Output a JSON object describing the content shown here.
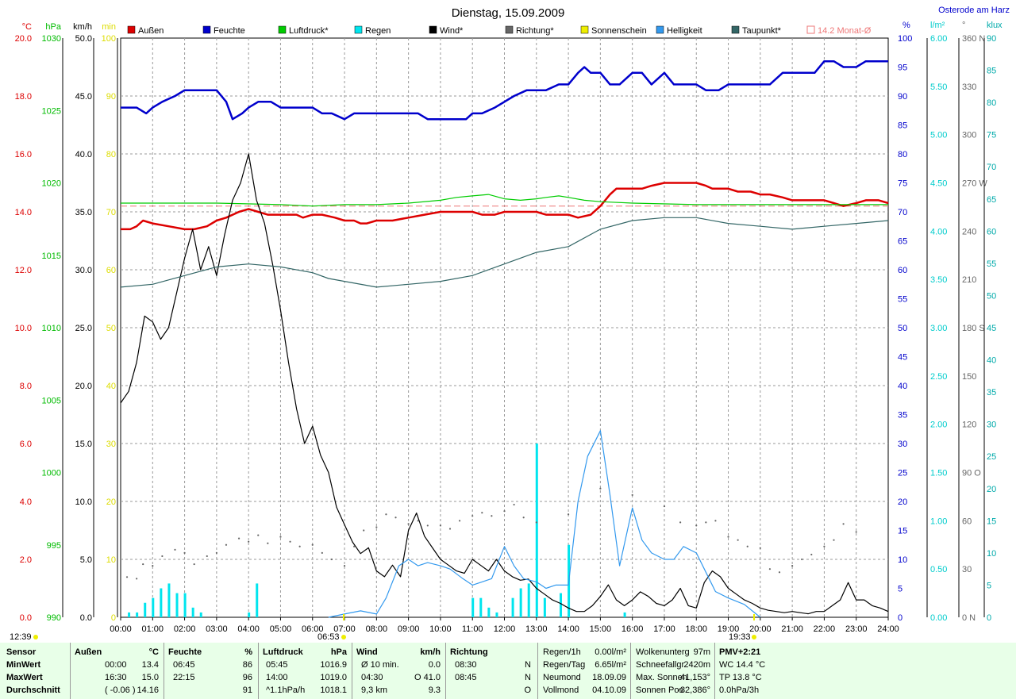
{
  "chart_data": {
    "type": "line",
    "title": "Dienstag, 15.09.2009",
    "location": "Osterode am Harz",
    "x_ticks": [
      "00:00",
      "01:00",
      "02:00",
      "03:00",
      "04:00",
      "05:00",
      "06:00",
      "07:00",
      "08:00",
      "09:00",
      "10:00",
      "11:00",
      "12:00",
      "13:00",
      "14:00",
      "15:00",
      "16:00",
      "17:00",
      "18:00",
      "19:00",
      "20:00",
      "21:00",
      "22:00",
      "23:00",
      "24:00"
    ],
    "left_axes": [
      {
        "unit": "°C",
        "color": "#dd0000",
        "min": 0,
        "max": 20,
        "labels": [
          "0.0",
          "2.0",
          "4.0",
          "6.0",
          "8.0",
          "10.0",
          "12.0",
          "14.0",
          "16.0",
          "18.0",
          "20.0"
        ]
      },
      {
        "unit": "hPa",
        "color": "#00bb00",
        "min": 990,
        "max": 1030,
        "labels": [
          "990",
          "995",
          "1000",
          "1005",
          "1010",
          "1015",
          "1020",
          "1025",
          "1030"
        ]
      },
      {
        "unit": "km/h",
        "color": "#000000",
        "min": 0,
        "max": 50,
        "labels": [
          "0.0",
          "5.0",
          "10.0",
          "15.0",
          "20.0",
          "25.0",
          "30.0",
          "35.0",
          "40.0",
          "45.0",
          "50.0"
        ]
      },
      {
        "unit": "min",
        "color": "#dddd00",
        "min": 0,
        "max": 100,
        "labels": [
          "0",
          "10",
          "20",
          "30",
          "40",
          "50",
          "60",
          "70",
          "80",
          "90",
          "100"
        ]
      }
    ],
    "right_axes": [
      {
        "unit": "%",
        "color": "#0000cc",
        "min": 0,
        "max": 100,
        "labels": [
          "0",
          "5",
          "10",
          "15",
          "20",
          "25",
          "30",
          "35",
          "40",
          "45",
          "50",
          "55",
          "60",
          "65",
          "70",
          "75",
          "80",
          "85",
          "90",
          "95",
          "100"
        ]
      },
      {
        "unit": "l/m²",
        "color": "#00cccc",
        "min": 0,
        "max": 6,
        "labels": [
          "0.00",
          "0.50",
          "1.00",
          "1.50",
          "2.00",
          "2.50",
          "3.00",
          "3.50",
          "4.00",
          "4.50",
          "5.00",
          "5.50",
          "6.00"
        ]
      },
      {
        "unit": "°",
        "color": "#666666",
        "min": 0,
        "max": 360,
        "labels": [
          "0 N",
          "30",
          "60",
          "90 O",
          "120",
          "150",
          "180 S",
          "210",
          "240",
          "270 W",
          "300",
          "330",
          "360 N"
        ]
      },
      {
        "unit": "klux",
        "color": "#00aaaa",
        "min": 0,
        "max": 90,
        "labels": [
          "0",
          "5",
          "10",
          "15",
          "20",
          "25",
          "30",
          "35",
          "40",
          "45",
          "50",
          "55",
          "60",
          "65",
          "70",
          "75",
          "80",
          "85",
          "90"
        ]
      }
    ],
    "legend": [
      "Außen",
      "Feuchte",
      "Luftdruck*",
      "Regen",
      "Wind*",
      "Richtung*",
      "Sonnenschein",
      "Helligkeit",
      "Taupunkt*",
      "14.2 Monat-Ø"
    ],
    "colors": {
      "aussen": "#dd0000",
      "feuchte": "#0000cc",
      "luftdruck": "#00cc00",
      "regen": "#00e5ee",
      "wind": "#000000",
      "richtung": "#666666",
      "sonne": "#eeee00",
      "helligkeit": "#3399ee",
      "taupunkt": "#336666",
      "monat": "#ee7777"
    },
    "monthly_avg": 14.2,
    "series": [
      {
        "name": "Außen",
        "unit": "°C",
        "x": [
          0,
          0.3,
          0.5,
          0.7,
          1,
          1.5,
          2,
          2.3,
          2.7,
          3,
          3.3,
          3.7,
          4,
          4.3,
          4.6,
          5,
          5.5,
          5.7,
          6,
          6.3,
          6.7,
          7,
          7.3,
          7.5,
          7.7,
          8,
          8.5,
          9,
          9.5,
          10,
          10.5,
          11,
          11.3,
          11.5,
          11.7,
          12,
          12.3,
          12.5,
          12.7,
          13,
          13.3,
          13.5,
          14,
          14.3,
          14.7,
          15,
          15.3,
          15.5,
          16,
          16.3,
          16.6,
          17,
          17.5,
          18,
          18.3,
          18.5,
          19,
          19.3,
          19.7,
          20,
          20.3,
          20.7,
          21,
          21.5,
          22,
          22.3,
          22.6,
          23,
          23.3,
          23.7,
          24
        ],
        "y": [
          13.4,
          13.4,
          13.5,
          13.7,
          13.6,
          13.5,
          13.4,
          13.4,
          13.5,
          13.7,
          13.8,
          14.0,
          14.1,
          14.0,
          13.9,
          13.9,
          13.9,
          13.8,
          13.9,
          13.9,
          13.8,
          13.7,
          13.7,
          13.6,
          13.6,
          13.7,
          13.7,
          13.8,
          13.9,
          14.0,
          14.0,
          14.0,
          13.9,
          13.9,
          13.9,
          14.0,
          14.0,
          14.0,
          14.0,
          14.0,
          13.9,
          13.9,
          13.9,
          13.8,
          13.9,
          14.2,
          14.6,
          14.8,
          14.8,
          14.8,
          14.9,
          15.0,
          15.0,
          15.0,
          14.9,
          14.8,
          14.8,
          14.7,
          14.7,
          14.6,
          14.6,
          14.5,
          14.4,
          14.4,
          14.4,
          14.3,
          14.2,
          14.3,
          14.4,
          14.4,
          14.3
        ]
      },
      {
        "name": "Feuchte",
        "unit": "%",
        "x": [
          0,
          0.5,
          0.8,
          1,
          1.3,
          1.7,
          2,
          2.5,
          3,
          3.3,
          3.5,
          3.8,
          4,
          4.3,
          4.7,
          5,
          5.5,
          6,
          6.3,
          6.6,
          7,
          7.3,
          7.7,
          8,
          8.5,
          9,
          9.3,
          9.6,
          10,
          10.5,
          10.8,
          11,
          11.3,
          11.7,
          12,
          12.3,
          12.7,
          13,
          13.3,
          13.7,
          14,
          14.3,
          14.5,
          14.7,
          15,
          15.3,
          15.6,
          16,
          16.3,
          16.6,
          17,
          17.3,
          17.6,
          18,
          18.3,
          18.7,
          19,
          19.3,
          19.7,
          20,
          20.3,
          20.7,
          21,
          21.3,
          21.7,
          22,
          22.3,
          22.6,
          23,
          23.3,
          23.7,
          24
        ],
        "y": [
          88,
          88,
          87,
          88,
          89,
          90,
          91,
          91,
          91,
          89,
          86,
          87,
          88,
          89,
          89,
          88,
          88,
          88,
          87,
          87,
          86,
          87,
          87,
          87,
          87,
          87,
          87,
          86,
          86,
          86,
          86,
          87,
          87,
          88,
          89,
          90,
          91,
          91,
          91,
          92,
          92,
          94,
          95,
          94,
          94,
          92,
          92,
          94,
          94,
          92,
          94,
          92,
          92,
          92,
          91,
          91,
          92,
          92,
          92,
          92,
          92,
          94,
          94,
          94,
          94,
          96,
          96,
          95,
          95,
          96,
          96,
          96
        ]
      },
      {
        "name": "Luftdruck*",
        "unit": "hPa",
        "x": [
          0,
          3,
          5,
          6,
          7,
          8,
          9,
          10,
          10.5,
          11,
          11.5,
          12,
          12.5,
          13,
          13.3,
          13.7,
          14,
          14.5,
          15,
          16,
          18,
          24
        ],
        "y": [
          1018.6,
          1018.6,
          1018.5,
          1018.4,
          1018.5,
          1018.5,
          1018.6,
          1018.8,
          1019.0,
          1019.1,
          1019.2,
          1018.9,
          1018.8,
          1018.9,
          1019.0,
          1019.1,
          1019.0,
          1018.8,
          1018.7,
          1018.6,
          1018.5,
          1018.5
        ]
      },
      {
        "name": "Wind*",
        "unit": "km/h",
        "x": [
          0,
          0.25,
          0.5,
          0.75,
          1,
          1.25,
          1.5,
          1.75,
          2,
          2.25,
          2.5,
          2.75,
          3,
          3.25,
          3.5,
          3.75,
          4,
          4.25,
          4.5,
          4.75,
          5,
          5.25,
          5.5,
          5.75,
          6,
          6.25,
          6.5,
          6.75,
          7,
          7.25,
          7.5,
          7.75,
          8,
          8.25,
          8.5,
          8.75,
          9,
          9.25,
          9.5,
          9.75,
          10,
          10.25,
          10.5,
          10.75,
          11,
          11.25,
          11.5,
          11.75,
          12,
          12.25,
          12.5,
          12.75,
          13,
          13.25,
          13.5,
          13.75,
          14,
          14.25,
          14.5,
          14.75,
          15,
          15.25,
          15.5,
          15.75,
          16,
          16.25,
          16.5,
          16.75,
          17,
          17.25,
          17.5,
          17.75,
          18,
          18.25,
          18.5,
          18.75,
          19,
          19.25,
          19.5,
          19.75,
          20,
          20.25,
          20.5,
          20.75,
          21,
          21.25,
          21.5,
          21.75,
          22,
          22.25,
          22.5,
          22.75,
          23,
          23.25,
          23.5,
          23.75,
          24
        ],
        "y": [
          18.5,
          19.5,
          22.0,
          26.0,
          25.5,
          24.0,
          25.0,
          28.0,
          31.0,
          33.5,
          30.0,
          32.0,
          29.5,
          33.0,
          36.0,
          37.5,
          40.0,
          36.0,
          34.0,
          30.5,
          26.5,
          22.0,
          18.0,
          15.0,
          16.5,
          14.0,
          12.5,
          9.5,
          8.0,
          6.5,
          5.5,
          6.0,
          4.0,
          3.5,
          4.5,
          3.5,
          7.5,
          9.0,
          7.0,
          6.0,
          5.0,
          4.5,
          4.0,
          3.8,
          5.0,
          4.5,
          4.0,
          5.0,
          4.0,
          3.5,
          3.2,
          3.3,
          2.5,
          2.0,
          1.5,
          1.2,
          0.8,
          0.5,
          0.5,
          1.0,
          1.8,
          2.8,
          1.5,
          1.0,
          1.5,
          2.2,
          1.8,
          1.2,
          1.0,
          1.5,
          2.5,
          1.0,
          0.8,
          3.0,
          4.0,
          3.5,
          2.5,
          2.0,
          1.5,
          1.2,
          0.8,
          0.6,
          0.5,
          0.4,
          0.5,
          0.4,
          0.3,
          0.5,
          0.5,
          1.0,
          1.5,
          3.0,
          1.5,
          1.5,
          1.0,
          0.8,
          0.5
        ]
      },
      {
        "name": "Taupunkt*",
        "unit": "°C",
        "x": [
          0,
          1,
          2,
          3,
          4,
          5,
          6,
          6.5,
          7,
          8,
          9,
          10,
          11,
          12,
          13,
          14,
          15,
          16,
          17,
          18,
          19,
          20,
          21,
          22,
          23,
          24
        ],
        "y": [
          11.4,
          11.5,
          11.8,
          12.1,
          12.2,
          12.1,
          11.9,
          11.7,
          11.6,
          11.4,
          11.5,
          11.6,
          11.8,
          12.2,
          12.6,
          12.8,
          13.4,
          13.7,
          13.8,
          13.8,
          13.6,
          13.5,
          13.4,
          13.5,
          13.6,
          13.7
        ]
      },
      {
        "name": "Helligkeit",
        "unit": "klux",
        "x": [
          6.5,
          7,
          7.5,
          8,
          8.3,
          8.7,
          9,
          9.3,
          9.6,
          10,
          10.3,
          10.7,
          11,
          11.3,
          11.6,
          12,
          12.3,
          12.6,
          13,
          13.3,
          13.6,
          14,
          14.3,
          14.6,
          15,
          15.3,
          15.6,
          16,
          16.3,
          16.6,
          17,
          17.3,
          17.6,
          18,
          18.3,
          18.6,
          19,
          19.5,
          20
        ],
        "y": [
          0,
          0.5,
          1,
          0.5,
          3,
          8,
          9,
          8,
          8.5,
          8,
          7.5,
          6,
          5,
          5.5,
          6,
          11,
          8,
          6,
          5.5,
          4.5,
          5,
          5,
          18,
          25,
          29,
          19,
          8,
          17,
          12,
          10,
          9,
          9,
          11,
          10,
          7,
          4,
          3,
          2,
          0
        ]
      },
      {
        "name": "Richtung*",
        "unit": "°",
        "x": [
          0.2,
          0.5,
          0.7,
          1,
          1.3,
          1.7,
          2,
          2.3,
          2.7,
          3,
          3.3,
          3.7,
          4,
          4.3,
          4.6,
          5,
          5.3,
          5.6,
          6,
          6.3,
          6.6,
          7,
          7.3,
          7.6,
          8,
          8.3,
          8.6,
          9,
          9.3,
          9.6,
          10,
          10.3,
          10.6,
          11,
          11.3,
          11.6,
          12,
          12.3,
          12.6,
          13,
          14,
          15,
          16,
          17,
          17.5,
          18,
          18.3,
          18.6,
          19,
          19.3,
          19.6,
          20,
          20.3,
          20.6,
          21,
          21.3,
          21.6,
          22,
          22.3,
          22.6,
          23
        ],
        "y": [
          25,
          24,
          33,
          32,
          38,
          42,
          40,
          33,
          38,
          40,
          45,
          49,
          47,
          51,
          46,
          50,
          47,
          44,
          45,
          40,
          36,
          32,
          44,
          54,
          56,
          64,
          62,
          58,
          60,
          57,
          57,
          55,
          60,
          63,
          65,
          63,
          66,
          70,
          62,
          59,
          64,
          80,
          76,
          69,
          59,
          57,
          59,
          60,
          50,
          48,
          44,
          43,
          30,
          28,
          32,
          36,
          39,
          44,
          48,
          58,
          53
        ]
      }
    ],
    "bars": [
      {
        "name": "Regen",
        "unit": "l/m²",
        "x": [
          0.25,
          0.5,
          0.75,
          1.0,
          1.25,
          1.5,
          1.75,
          2.0,
          2.25,
          2.5,
          4.0,
          4.25,
          11.0,
          11.25,
          11.5,
          11.75,
          12.25,
          12.5,
          12.75,
          13.0,
          13.25,
          13.75,
          14.0,
          15.75
        ],
        "y": [
          0.05,
          0.05,
          0.15,
          0.2,
          0.3,
          0.35,
          0.25,
          0.25,
          0.1,
          0.05,
          0.05,
          0.35,
          0.2,
          0.2,
          0.1,
          0.05,
          0.2,
          0.3,
          0.35,
          1.8,
          0.2,
          0.25,
          0.75,
          0.05
        ]
      }
    ],
    "annotations": [
      {
        "text": "12:39",
        "position": "below axis left"
      },
      {
        "text": "06:53",
        "position": "below axis at sunrise"
      },
      {
        "text": "19:33",
        "position": "below axis at sunset"
      }
    ]
  },
  "footer": {
    "col1": [
      "Sensor",
      "MinWert",
      "MaxWert",
      "Durchschnitt"
    ],
    "aussen": {
      "title": "Außen",
      "unit": "°C",
      "rows": [
        [
          "00:00",
          "13.4"
        ],
        [
          "16:30",
          "15.0"
        ],
        [
          "( -0.06 )",
          "14.16"
        ]
      ]
    },
    "feuchte": {
      "title": "Feuchte",
      "unit": "%",
      "rows": [
        [
          "06:45",
          "86"
        ],
        [
          "22:15",
          "96"
        ],
        [
          "",
          "91"
        ]
      ]
    },
    "luftdruck": {
      "title": "Luftdruck",
      "unit": "hPa",
      "rows": [
        [
          "05:45",
          "1016.9"
        ],
        [
          "14:00",
          "1019.0"
        ],
        [
          "^1.1hPa/h",
          "1018.1"
        ]
      ]
    },
    "wind": {
      "title": "Wind",
      "unit": "km/h",
      "rows": [
        [
          "Ø 10 min.",
          "0.0"
        ],
        [
          "04:30",
          "O 41.0"
        ],
        [
          "9,3 km",
          "9.3"
        ]
      ]
    },
    "richtung": {
      "title": "Richtung",
      "rows": [
        [
          "08:30",
          "N"
        ],
        [
          "08:45",
          "N"
        ],
        [
          "",
          "O"
        ]
      ]
    },
    "regen": [
      [
        "Regen/1h",
        "0.00l/m²"
      ],
      [
        "Regen/Tag",
        "6.65l/m²"
      ],
      [
        "Neumond",
        "18.09.09"
      ],
      [
        "Vollmond",
        "04.10.09"
      ]
    ],
    "wolken": [
      [
        "Wolkenunterg",
        "97m"
      ],
      [
        "Schneefallgr",
        "2420m"
      ],
      [
        "Max. Sonnen",
        "41,153°"
      ],
      [
        "Sonnen Pos",
        "-32,386°"
      ]
    ],
    "pmv": [
      "PMV+2:21",
      "WC 14.4 °C",
      "TP 13.8 °C",
      "0.0hPa/3h"
    ]
  }
}
